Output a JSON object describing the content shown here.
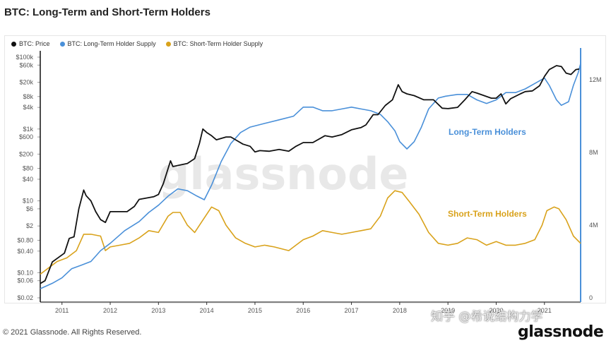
{
  "page": {
    "title": "BTC: Long-Term and Short-Term Holders"
  },
  "legend": [
    {
      "label": "BTC: Price",
      "color": "#111111"
    },
    {
      "label": "BTC: Long-Term Holder Supply",
      "color": "#4a90d9"
    },
    {
      "label": "BTC: Short-Term Holder Supply",
      "color": "#d9a21b"
    }
  ],
  "footer": {
    "copyright": "© 2021 Glassnode. All Rights Reserved.",
    "brand": "glassnode",
    "zhihu": "知乎 @希说结构力学"
  },
  "chart_data": {
    "type": "line",
    "title": "BTC: Long-Term and Short-Term Holders",
    "watermark": "glassnode",
    "x_ticks": [
      "2011",
      "2012",
      "2013",
      "2014",
      "2015",
      "2016",
      "2017",
      "2018",
      "2019",
      "2020",
      "2021"
    ],
    "x_range": [
      2010.55,
      2021.75
    ],
    "y_left": {
      "scale": "log",
      "range": [
        0.02,
        150000
      ],
      "ticks": [
        {
          "v": 100000,
          "label": "$100k"
        },
        {
          "v": 60000,
          "label": "$60k"
        },
        {
          "v": 20000,
          "label": "$20k"
        },
        {
          "v": 8000,
          "label": "$8k"
        },
        {
          "v": 4000,
          "label": "$4k"
        },
        {
          "v": 1000,
          "label": "$1k"
        },
        {
          "v": 600,
          "label": "$600"
        },
        {
          "v": 200,
          "label": "$200"
        },
        {
          "v": 80,
          "label": "$80"
        },
        {
          "v": 40,
          "label": "$40"
        },
        {
          "v": 10,
          "label": "$10"
        },
        {
          "v": 6,
          "label": "$6"
        },
        {
          "v": 2,
          "label": "$2"
        },
        {
          "v": 0.8,
          "label": "$0.80"
        },
        {
          "v": 0.4,
          "label": "$0.40"
        },
        {
          "v": 0.1,
          "label": "$0.10"
        },
        {
          "v": 0.06,
          "label": "$0.06"
        },
        {
          "v": 0.02,
          "label": "$0.02"
        }
      ]
    },
    "y_right": {
      "scale": "linear",
      "range": [
        0,
        13600000
      ],
      "ticks": [
        {
          "v": 0,
          "label": "0"
        },
        {
          "v": 4000000,
          "label": "4M"
        },
        {
          "v": 8000000,
          "label": "8M"
        },
        {
          "v": 12000000,
          "label": "12M"
        }
      ]
    },
    "annotations": [
      {
        "text": "Long-Term Holders",
        "color": "#4a90d9"
      },
      {
        "text": "Short-Term Holders",
        "color": "#d9a21b"
      }
    ],
    "series": [
      {
        "name": "BTC: Price",
        "axis": "left",
        "color": "#111111",
        "points": [
          [
            2010.55,
            0.05
          ],
          [
            2010.65,
            0.06
          ],
          [
            2010.8,
            0.2
          ],
          [
            2010.95,
            0.28
          ],
          [
            2011.05,
            0.35
          ],
          [
            2011.15,
            0.9
          ],
          [
            2011.25,
            1.0
          ],
          [
            2011.35,
            6
          ],
          [
            2011.45,
            20
          ],
          [
            2011.5,
            14
          ],
          [
            2011.6,
            10
          ],
          [
            2011.7,
            5
          ],
          [
            2011.8,
            3
          ],
          [
            2011.9,
            2.5
          ],
          [
            2012.0,
            5
          ],
          [
            2012.1,
            5
          ],
          [
            2012.2,
            5
          ],
          [
            2012.35,
            5
          ],
          [
            2012.5,
            7
          ],
          [
            2012.6,
            11
          ],
          [
            2012.75,
            12
          ],
          [
            2012.9,
            13
          ],
          [
            2013.0,
            15
          ],
          [
            2013.1,
            30
          ],
          [
            2013.25,
            130
          ],
          [
            2013.3,
            90
          ],
          [
            2013.45,
            100
          ],
          [
            2013.6,
            110
          ],
          [
            2013.75,
            150
          ],
          [
            2013.85,
            400
          ],
          [
            2013.92,
            1000
          ],
          [
            2014.0,
            800
          ],
          [
            2014.1,
            650
          ],
          [
            2014.2,
            500
          ],
          [
            2014.4,
            600
          ],
          [
            2014.5,
            600
          ],
          [
            2014.6,
            500
          ],
          [
            2014.75,
            380
          ],
          [
            2014.9,
            330
          ],
          [
            2015.0,
            230
          ],
          [
            2015.1,
            250
          ],
          [
            2015.3,
            240
          ],
          [
            2015.5,
            270
          ],
          [
            2015.7,
            240
          ],
          [
            2015.85,
            330
          ],
          [
            2016.0,
            420
          ],
          [
            2016.2,
            420
          ],
          [
            2016.45,
            650
          ],
          [
            2016.6,
            600
          ],
          [
            2016.8,
            700
          ],
          [
            2017.0,
            950
          ],
          [
            2017.2,
            1100
          ],
          [
            2017.3,
            1300
          ],
          [
            2017.45,
            2500
          ],
          [
            2017.55,
            2500
          ],
          [
            2017.7,
            4500
          ],
          [
            2017.85,
            6500
          ],
          [
            2017.97,
            17000
          ],
          [
            2018.05,
            11000
          ],
          [
            2018.15,
            9500
          ],
          [
            2018.3,
            8500
          ],
          [
            2018.5,
            6500
          ],
          [
            2018.7,
            6500
          ],
          [
            2018.88,
            3800
          ],
          [
            2019.0,
            3700
          ],
          [
            2019.2,
            4000
          ],
          [
            2019.35,
            6500
          ],
          [
            2019.5,
            11000
          ],
          [
            2019.6,
            10000
          ],
          [
            2019.75,
            8500
          ],
          [
            2019.9,
            7200
          ],
          [
            2020.0,
            7200
          ],
          [
            2020.1,
            9500
          ],
          [
            2020.2,
            5000
          ],
          [
            2020.3,
            7000
          ],
          [
            2020.5,
            9500
          ],
          [
            2020.6,
            11000
          ],
          [
            2020.75,
            11500
          ],
          [
            2020.9,
            16000
          ],
          [
            2021.0,
            29000
          ],
          [
            2021.1,
            45000
          ],
          [
            2021.25,
            58000
          ],
          [
            2021.35,
            55000
          ],
          [
            2021.45,
            36000
          ],
          [
            2021.55,
            33000
          ],
          [
            2021.65,
            45000
          ],
          [
            2021.72,
            47000
          ]
        ]
      },
      {
        "name": "BTC: Long-Term Holder Supply",
        "axis": "right",
        "color": "#4a90d9",
        "points": [
          [
            2010.55,
            500000.0
          ],
          [
            2010.8,
            800000.0
          ],
          [
            2011.0,
            1100000.0
          ],
          [
            2011.2,
            1600000.0
          ],
          [
            2011.4,
            1800000.0
          ],
          [
            2011.6,
            2000000.0
          ],
          [
            2011.8,
            2600000.0
          ],
          [
            2012.0,
            3000000.0
          ],
          [
            2012.3,
            3700000.0
          ],
          [
            2012.6,
            4200000.0
          ],
          [
            2012.8,
            4700000.0
          ],
          [
            2013.0,
            5100000.0
          ],
          [
            2013.2,
            5600000.0
          ],
          [
            2013.4,
            6000000.0
          ],
          [
            2013.6,
            5900000.0
          ],
          [
            2013.8,
            5600000.0
          ],
          [
            2013.95,
            5400000.0
          ],
          [
            2014.1,
            6200000.0
          ],
          [
            2014.3,
            7500000.0
          ],
          [
            2014.5,
            8500000.0
          ],
          [
            2014.7,
            9100000.0
          ],
          [
            2014.9,
            9400000.0
          ],
          [
            2015.2,
            9600000.0
          ],
          [
            2015.5,
            9800000.0
          ],
          [
            2015.8,
            10000000.0
          ],
          [
            2016.0,
            10500000.0
          ],
          [
            2016.2,
            10500000.0
          ],
          [
            2016.4,
            10300000.0
          ],
          [
            2016.6,
            10300000.0
          ],
          [
            2016.8,
            10400000.0
          ],
          [
            2017.0,
            10500000.0
          ],
          [
            2017.2,
            10400000.0
          ],
          [
            2017.4,
            10300000.0
          ],
          [
            2017.6,
            10100000.0
          ],
          [
            2017.75,
            9700000.0
          ],
          [
            2017.9,
            9200000.0
          ],
          [
            2018.0,
            8600000.0
          ],
          [
            2018.15,
            8200000.0
          ],
          [
            2018.3,
            8600000.0
          ],
          [
            2018.45,
            9400000.0
          ],
          [
            2018.6,
            10400000.0
          ],
          [
            2018.8,
            11000000.0
          ],
          [
            2018.95,
            11100000.0
          ],
          [
            2019.2,
            11200000.0
          ],
          [
            2019.4,
            11200000.0
          ],
          [
            2019.6,
            10900000.0
          ],
          [
            2019.8,
            10700000.0
          ],
          [
            2020.0,
            10900000.0
          ],
          [
            2020.2,
            11300000.0
          ],
          [
            2020.4,
            11300000.0
          ],
          [
            2020.6,
            11500000.0
          ],
          [
            2020.8,
            11800000.0
          ],
          [
            2021.0,
            12100000.0
          ],
          [
            2021.1,
            11700000.0
          ],
          [
            2021.25,
            10900000.0
          ],
          [
            2021.35,
            10600000.0
          ],
          [
            2021.5,
            10800000.0
          ],
          [
            2021.6,
            11700000.0
          ],
          [
            2021.7,
            12400000.0
          ],
          [
            2021.75,
            12900000.0
          ]
        ]
      },
      {
        "name": "BTC: Short-Term Holder Supply",
        "axis": "right",
        "color": "#d9a21b",
        "points": [
          [
            2010.55,
            1300000.0
          ],
          [
            2010.7,
            1600000.0
          ],
          [
            2010.9,
            2000000.0
          ],
          [
            2011.1,
            2200000.0
          ],
          [
            2011.3,
            2600000.0
          ],
          [
            2011.45,
            3500000.0
          ],
          [
            2011.6,
            3500000.0
          ],
          [
            2011.8,
            3400000.0
          ],
          [
            2011.9,
            2600000.0
          ],
          [
            2012.0,
            2800000.0
          ],
          [
            2012.2,
            2900000.0
          ],
          [
            2012.4,
            3000000.0
          ],
          [
            2012.6,
            3300000.0
          ],
          [
            2012.8,
            3700000.0
          ],
          [
            2013.0,
            3600000.0
          ],
          [
            2013.2,
            4500000.0
          ],
          [
            2013.3,
            4700000.0
          ],
          [
            2013.45,
            4700000.0
          ],
          [
            2013.6,
            4000000.0
          ],
          [
            2013.75,
            3600000.0
          ],
          [
            2013.9,
            4200000.0
          ],
          [
            2014.1,
            5000000.0
          ],
          [
            2014.25,
            4800000.0
          ],
          [
            2014.4,
            4000000.0
          ],
          [
            2014.6,
            3300000.0
          ],
          [
            2014.8,
            3000000.0
          ],
          [
            2015.0,
            2800000.0
          ],
          [
            2015.2,
            2900000.0
          ],
          [
            2015.4,
            2800000.0
          ],
          [
            2015.55,
            2700000.0
          ],
          [
            2015.7,
            2600000.0
          ],
          [
            2015.85,
            2900000.0
          ],
          [
            2016.0,
            3200000.0
          ],
          [
            2016.2,
            3400000.0
          ],
          [
            2016.4,
            3700000.0
          ],
          [
            2016.6,
            3600000.0
          ],
          [
            2016.8,
            3500000.0
          ],
          [
            2017.0,
            3600000.0
          ],
          [
            2017.2,
            3700000.0
          ],
          [
            2017.4,
            3800000.0
          ],
          [
            2017.6,
            4500000.0
          ],
          [
            2017.75,
            5500000.0
          ],
          [
            2017.9,
            5900000.0
          ],
          [
            2018.05,
            5800000.0
          ],
          [
            2018.2,
            5300000.0
          ],
          [
            2018.4,
            4600000.0
          ],
          [
            2018.6,
            3600000.0
          ],
          [
            2018.8,
            3000000.0
          ],
          [
            2019.0,
            2900000.0
          ],
          [
            2019.2,
            3000000.0
          ],
          [
            2019.4,
            3300000.0
          ],
          [
            2019.6,
            3200000.0
          ],
          [
            2019.8,
            2900000.0
          ],
          [
            2020.0,
            3100000.0
          ],
          [
            2020.2,
            2900000.0
          ],
          [
            2020.4,
            2900000.0
          ],
          [
            2020.6,
            3000000.0
          ],
          [
            2020.8,
            3200000.0
          ],
          [
            2020.95,
            4000000.0
          ],
          [
            2021.05,
            4800000.0
          ],
          [
            2021.2,
            5000000.0
          ],
          [
            2021.3,
            4900000.0
          ],
          [
            2021.45,
            4300000.0
          ],
          [
            2021.6,
            3400000.0
          ],
          [
            2021.75,
            3000000.0
          ]
        ]
      }
    ]
  }
}
